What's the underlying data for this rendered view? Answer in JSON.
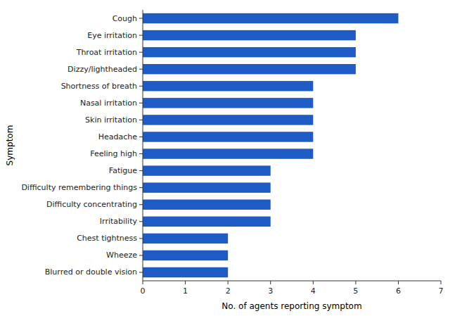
{
  "chart_data": {
    "type": "bar",
    "orientation": "horizontal",
    "xlabel": "No. of agents reporting symptom",
    "ylabel": "Symptom",
    "categories": [
      "Blurred or double vision",
      "Wheeze",
      "Chest tightness",
      "Irritability",
      "Difficulty concentrating",
      "Difficulty remembering things",
      "Fatigue",
      "Feeling high",
      "Headache",
      "Skin irritation",
      "Nasal irritation",
      "Shortness of breath",
      "Dizzy/lightheaded",
      "Throat irritation",
      "Eye irritation",
      "Cough"
    ],
    "values": [
      2,
      2,
      2,
      3,
      3,
      3,
      3,
      4,
      4,
      4,
      4,
      4,
      5,
      5,
      5,
      6
    ],
    "color": "#1f5bc4",
    "xlim": [
      0,
      7
    ],
    "xticks": [
      0,
      1,
      2,
      3,
      4,
      5,
      6,
      7
    ],
    "grid": false
  }
}
